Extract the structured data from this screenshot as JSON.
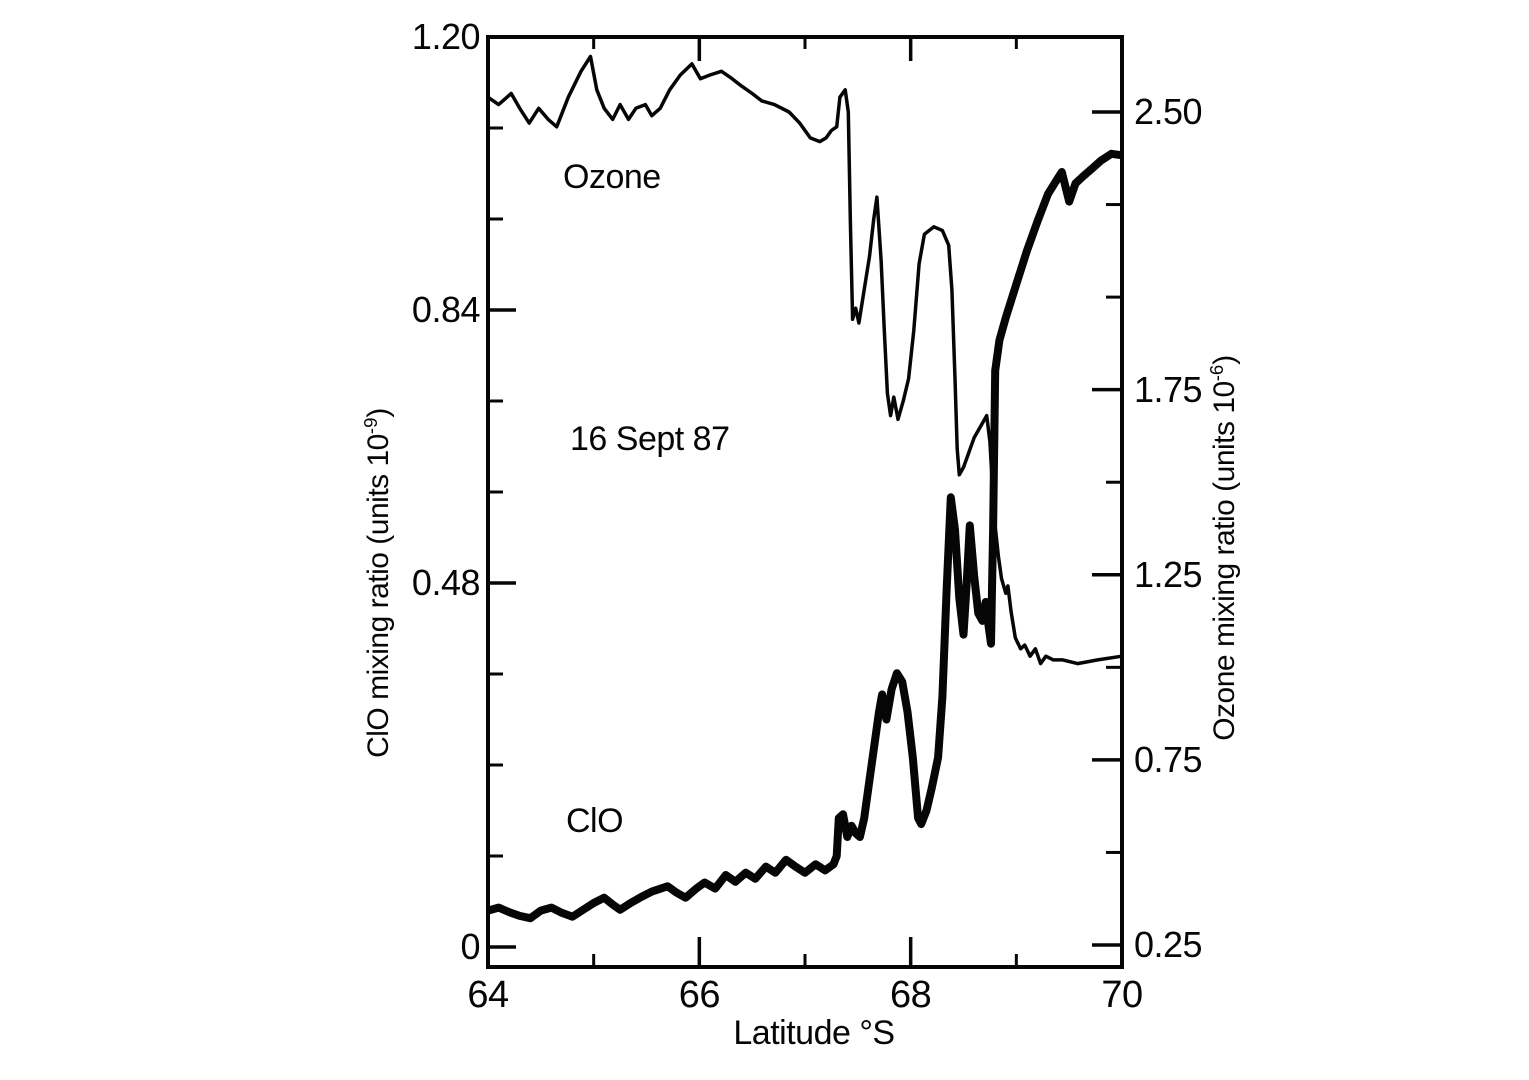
{
  "chart_data": {
    "type": "line",
    "title": "",
    "annotations": {
      "ozone": {
        "text": "Ozone"
      },
      "date": {
        "text": "16 Sept 87"
      },
      "clo": {
        "text": "ClO"
      }
    },
    "x_axis": {
      "label": "Latitude °S",
      "range": [
        64,
        70
      ],
      "major_ticks": [
        {
          "value": 64,
          "label": "64"
        },
        {
          "value": 66,
          "label": "66"
        },
        {
          "value": 68,
          "label": "68"
        },
        {
          "value": 70,
          "label": "70"
        }
      ],
      "minor_ticks": [
        65,
        67,
        69
      ]
    },
    "left_axis": {
      "label_prefix": "ClO mixing ratio (units 10",
      "label_sup": "-9",
      "label_suffix": ")",
      "range": [
        0,
        1.2
      ],
      "major_ticks": [
        {
          "value": 1.2,
          "label": "1.20"
        },
        {
          "value": 0.84,
          "label": "0.84"
        },
        {
          "value": 0.48,
          "label": "0.48"
        },
        {
          "value": 0,
          "label": "0"
        }
      ],
      "minor_ticks": [
        0.12,
        0.24,
        0.36,
        0.6,
        0.72,
        0.96,
        1.08
      ]
    },
    "right_axis": {
      "label_prefix": "Ozone mixing ratio (units 10",
      "label_sup": "-6",
      "label_suffix": ")",
      "range": [
        0.25,
        2.5
      ],
      "major_ticks": [
        {
          "value": 2.5,
          "label": "2.50"
        },
        {
          "value": 1.75,
          "label": "1.75"
        },
        {
          "value": 1.25,
          "label": "1.25"
        },
        {
          "value": 0.75,
          "label": "0.75"
        },
        {
          "value": 0.25,
          "label": "0.25"
        }
      ],
      "minor_ticks": [
        0.5,
        1.0,
        1.5,
        2.0,
        2.25
      ]
    },
    "colors": {
      "line": "#060606",
      "background": "#ffffff"
    },
    "legend": "none",
    "grid": false,
    "series": [
      {
        "name": "Ozone",
        "axis": "right",
        "style": "thin",
        "points": [
          [
            64.0,
            2.54
          ],
          [
            64.1,
            2.52
          ],
          [
            64.22,
            2.55
          ],
          [
            64.3,
            2.51
          ],
          [
            64.39,
            2.47
          ],
          [
            64.48,
            2.51
          ],
          [
            64.57,
            2.48
          ],
          [
            64.65,
            2.46
          ],
          [
            64.76,
            2.54
          ],
          [
            64.88,
            2.61
          ],
          [
            64.97,
            2.65
          ],
          [
            65.03,
            2.56
          ],
          [
            65.1,
            2.51
          ],
          [
            65.18,
            2.48
          ],
          [
            65.25,
            2.52
          ],
          [
            65.33,
            2.48
          ],
          [
            65.4,
            2.51
          ],
          [
            65.49,
            2.52
          ],
          [
            65.55,
            2.49
          ],
          [
            65.63,
            2.51
          ],
          [
            65.72,
            2.56
          ],
          [
            65.82,
            2.6
          ],
          [
            65.93,
            2.63
          ],
          [
            66.01,
            2.59
          ],
          [
            66.1,
            2.6
          ],
          [
            66.21,
            2.61
          ],
          [
            66.31,
            2.59
          ],
          [
            66.4,
            2.57
          ],
          [
            66.5,
            2.55
          ],
          [
            66.59,
            2.53
          ],
          [
            66.71,
            2.52
          ],
          [
            66.85,
            2.5
          ],
          [
            66.95,
            2.47
          ],
          [
            67.05,
            2.43
          ],
          [
            67.14,
            2.42
          ],
          [
            67.2,
            2.43
          ],
          [
            67.25,
            2.45
          ],
          [
            67.3,
            2.46
          ],
          [
            67.33,
            2.54
          ],
          [
            67.38,
            2.56
          ],
          [
            67.41,
            2.5
          ],
          [
            67.43,
            2.2
          ],
          [
            67.45,
            1.94
          ],
          [
            67.48,
            1.97
          ],
          [
            67.51,
            1.93
          ],
          [
            67.56,
            2.02
          ],
          [
            67.61,
            2.11
          ],
          [
            67.65,
            2.21
          ],
          [
            67.68,
            2.27
          ],
          [
            67.72,
            2.1
          ],
          [
            67.75,
            1.91
          ],
          [
            67.78,
            1.74
          ],
          [
            67.81,
            1.68
          ],
          [
            67.84,
            1.73
          ],
          [
            67.88,
            1.67
          ],
          [
            67.93,
            1.72
          ],
          [
            67.98,
            1.78
          ],
          [
            68.03,
            1.91
          ],
          [
            68.08,
            2.09
          ],
          [
            68.13,
            2.17
          ],
          [
            68.22,
            2.19
          ],
          [
            68.3,
            2.18
          ],
          [
            68.36,
            2.14
          ],
          [
            68.39,
            2.02
          ],
          [
            68.42,
            1.78
          ],
          [
            68.44,
            1.59
          ],
          [
            68.46,
            1.52
          ],
          [
            68.5,
            1.54
          ],
          [
            68.55,
            1.58
          ],
          [
            68.6,
            1.62
          ],
          [
            68.66,
            1.65
          ],
          [
            68.72,
            1.68
          ],
          [
            68.75,
            1.61
          ],
          [
            68.77,
            1.51
          ],
          [
            68.8,
            1.38
          ],
          [
            68.83,
            1.3
          ],
          [
            68.86,
            1.24
          ],
          [
            68.9,
            1.2
          ],
          [
            68.92,
            1.22
          ],
          [
            68.95,
            1.15
          ],
          [
            68.99,
            1.08
          ],
          [
            69.04,
            1.05
          ],
          [
            69.08,
            1.06
          ],
          [
            69.13,
            1.03
          ],
          [
            69.18,
            1.05
          ],
          [
            69.23,
            1.01
          ],
          [
            69.28,
            1.03
          ],
          [
            69.35,
            1.02
          ],
          [
            69.44,
            1.02
          ],
          [
            69.58,
            1.01
          ],
          [
            69.77,
            1.02
          ],
          [
            70.0,
            1.03
          ]
        ]
      },
      {
        "name": "ClO",
        "axis": "left",
        "style": "thick",
        "points": [
          [
            64.0,
            0.048
          ],
          [
            64.1,
            0.052
          ],
          [
            64.2,
            0.046
          ],
          [
            64.3,
            0.041
          ],
          [
            64.4,
            0.038
          ],
          [
            64.5,
            0.048
          ],
          [
            64.6,
            0.052
          ],
          [
            64.7,
            0.045
          ],
          [
            64.8,
            0.04
          ],
          [
            64.9,
            0.049
          ],
          [
            65.0,
            0.058
          ],
          [
            65.1,
            0.065
          ],
          [
            65.18,
            0.056
          ],
          [
            65.25,
            0.049
          ],
          [
            65.35,
            0.058
          ],
          [
            65.45,
            0.066
          ],
          [
            65.55,
            0.073
          ],
          [
            65.7,
            0.08
          ],
          [
            65.78,
            0.072
          ],
          [
            65.87,
            0.065
          ],
          [
            65.97,
            0.077
          ],
          [
            66.05,
            0.085
          ],
          [
            66.15,
            0.077
          ],
          [
            66.25,
            0.095
          ],
          [
            66.34,
            0.086
          ],
          [
            66.44,
            0.098
          ],
          [
            66.53,
            0.09
          ],
          [
            66.63,
            0.106
          ],
          [
            66.72,
            0.098
          ],
          [
            66.82,
            0.115
          ],
          [
            66.91,
            0.106
          ],
          [
            67.0,
            0.098
          ],
          [
            67.1,
            0.109
          ],
          [
            67.19,
            0.101
          ],
          [
            67.27,
            0.109
          ],
          [
            67.3,
            0.12
          ],
          [
            67.32,
            0.17
          ],
          [
            67.36,
            0.175
          ],
          [
            67.4,
            0.145
          ],
          [
            67.44,
            0.16
          ],
          [
            67.48,
            0.15
          ],
          [
            67.52,
            0.145
          ],
          [
            67.56,
            0.17
          ],
          [
            67.6,
            0.21
          ],
          [
            67.65,
            0.26
          ],
          [
            67.7,
            0.31
          ],
          [
            67.73,
            0.333
          ],
          [
            67.77,
            0.3
          ],
          [
            67.82,
            0.34
          ],
          [
            67.87,
            0.361
          ],
          [
            67.92,
            0.35
          ],
          [
            67.97,
            0.31
          ],
          [
            68.02,
            0.25
          ],
          [
            68.07,
            0.17
          ],
          [
            68.1,
            0.162
          ],
          [
            68.15,
            0.18
          ],
          [
            68.2,
            0.21
          ],
          [
            68.26,
            0.25
          ],
          [
            68.3,
            0.33
          ],
          [
            68.34,
            0.47
          ],
          [
            68.38,
            0.593
          ],
          [
            68.42,
            0.55
          ],
          [
            68.46,
            0.46
          ],
          [
            68.5,
            0.412
          ],
          [
            68.53,
            0.48
          ],
          [
            68.56,
            0.556
          ],
          [
            68.6,
            0.49
          ],
          [
            68.64,
            0.44
          ],
          [
            68.68,
            0.43
          ],
          [
            68.71,
            0.455
          ],
          [
            68.74,
            0.42
          ],
          [
            68.76,
            0.4
          ],
          [
            68.78,
            0.55
          ],
          [
            68.8,
            0.76
          ],
          [
            68.84,
            0.8
          ],
          [
            68.9,
            0.83
          ],
          [
            69.0,
            0.874
          ],
          [
            69.1,
            0.918
          ],
          [
            69.2,
            0.957
          ],
          [
            69.3,
            0.993
          ],
          [
            69.38,
            1.011
          ],
          [
            69.43,
            1.022
          ],
          [
            69.5,
            0.983
          ],
          [
            69.56,
            1.007
          ],
          [
            69.63,
            1.016
          ],
          [
            69.72,
            1.027
          ],
          [
            69.8,
            1.037
          ],
          [
            69.9,
            1.046
          ],
          [
            70.0,
            1.044
          ]
        ]
      }
    ]
  }
}
